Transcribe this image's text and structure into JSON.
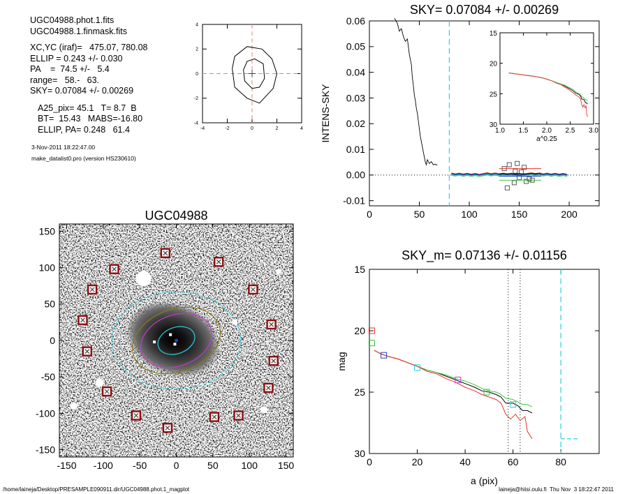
{
  "header": {
    "file_phot": "UGC04988.phot.1.fits",
    "file_mask": "UGC04988.1.finmask.fits",
    "params": [
      "XC,YC (iraf)=   475.07, 780.08",
      "ELLIP = 0.243 +/- 0.030",
      "PA    =  74.5 +/-   5.4",
      "range=   58.-   63.",
      "SKY= 0.07084 +/- 0.00269"
    ],
    "stats": [
      "A25_pix= 45.1   T= 8.7  B",
      "BT=  15.43   MABS=-16.80",
      "ELLIP, PA= 0.248   61.4"
    ],
    "date": "3-Nov-2011 18:22:47.00",
    "program": "make_datalist0.pro (version HS230610)"
  },
  "footer": {
    "path": "/home/laineja/Desktop/PRESAMPLE090911.dir/UGC04988.phot.1_magplot",
    "user": "laineja@hiisi.oulu.fi  Thu Nov  3 18:22:47 2011"
  },
  "colors": {
    "black": "#000000",
    "red": "#e8322c",
    "green": "#34c73a",
    "blue": "#2340c8",
    "cyan": "#29d0e0",
    "magenta": "#c838c8",
    "olive": "#8a7a18",
    "box": "#8b1010"
  },
  "chart_data": [
    {
      "id": "contour-inset",
      "type": "contour",
      "xlim": [
        -4,
        4
      ],
      "ylim": [
        -4,
        4
      ],
      "xticks": [
        "-4",
        "-2",
        "0",
        "2",
        "4"
      ],
      "yticks": [
        "4",
        "2",
        "0",
        "-2",
        "-4"
      ],
      "grid": false,
      "center_crosshair": [
        0,
        0
      ]
    },
    {
      "id": "sky-plot",
      "type": "line",
      "title": "SKY= 0.07084 +/- 0.00269",
      "xlabel": "",
      "ylabel": "INTENS-SKY",
      "xlim": [
        0,
        230
      ],
      "ylim": [
        -0.012,
        0.06
      ],
      "xticks": [
        "0",
        "50",
        "100",
        "150",
        "200"
      ],
      "yticks": [
        "0.06",
        "0.05",
        "0.04",
        "0.03",
        "0.02",
        "0.01",
        "0.00",
        "-0.01"
      ],
      "sky_window_x": 80,
      "profile": [
        [
          25,
          0.061
        ],
        [
          26,
          0.0605
        ],
        [
          28,
          0.059
        ],
        [
          30,
          0.056
        ],
        [
          32,
          0.057
        ],
        [
          34,
          0.054
        ],
        [
          36,
          0.052
        ],
        [
          38,
          0.053
        ],
        [
          40,
          0.047
        ],
        [
          42,
          0.043
        ],
        [
          43,
          0.038
        ],
        [
          44,
          0.035
        ],
        [
          45,
          0.031
        ],
        [
          46,
          0.029
        ],
        [
          47,
          0.026
        ],
        [
          48,
          0.024
        ],
        [
          49,
          0.021
        ],
        [
          50,
          0.018
        ],
        [
          51,
          0.015
        ],
        [
          52,
          0.013
        ],
        [
          53,
          0.011
        ],
        [
          54,
          0.009
        ],
        [
          55,
          0.007
        ],
        [
          56,
          0.005
        ],
        [
          57,
          0.004
        ],
        [
          58,
          0.006
        ],
        [
          60,
          0.0045
        ],
        [
          62,
          0.0052
        ],
        [
          64,
          0.004
        ],
        [
          66,
          0.0042
        ],
        [
          68,
          0.0038
        ]
      ],
      "sky_lines": [
        {
          "color": "black",
          "y": 0.0002,
          "x": [
            82,
            200
          ]
        },
        {
          "color": "green",
          "y": -0.0003,
          "x": [
            82,
            200
          ]
        },
        {
          "color": "red",
          "y": 0.0006,
          "x": [
            82,
            200
          ]
        },
        {
          "color": "cyan",
          "y": 0.0,
          "x": [
            82,
            200
          ]
        },
        {
          "color": "blue",
          "y": 0.0004,
          "x": [
            82,
            200
          ]
        }
      ],
      "sky_boxes": [
        [
          135,
          0.0025
        ],
        [
          140,
          0.004
        ],
        [
          145,
          -0.003
        ],
        [
          148,
          0.0045
        ],
        [
          150,
          -0.001
        ],
        [
          152,
          0.0012
        ],
        [
          155,
          0.003
        ],
        [
          157,
          -0.0025
        ],
        [
          160,
          -0.0015
        ],
        [
          163,
          -0.002
        ],
        [
          138,
          -0.005
        ],
        [
          146,
          0.0015
        ]
      ],
      "inset": {
        "xlabel": "a^0.25",
        "xlim": [
          1.0,
          3.0
        ],
        "ylim": [
          15,
          30
        ],
        "xticks": [
          "1.0",
          "1.5",
          "2.0",
          "2.5",
          "3.0"
        ],
        "yticks": [
          "15",
          "20",
          "25",
          "30"
        ]
      }
    },
    {
      "id": "image-panel",
      "type": "image",
      "title": "UGC04988",
      "xlim": [
        -160,
        160
      ],
      "ylim": [
        -160,
        160
      ],
      "xticks": [
        "-150",
        "-100",
        "-50",
        "0",
        "50",
        "100",
        "150"
      ],
      "yticks": [
        "150",
        "100",
        "50",
        "0",
        "-50",
        "-100",
        "-150"
      ],
      "marked_sources": [
        [
          -15,
          120
        ],
        [
          58,
          108
        ],
        [
          -85,
          98
        ],
        [
          -115,
          70
        ],
        [
          105,
          70
        ],
        [
          -128,
          28
        ],
        [
          130,
          22
        ],
        [
          -122,
          -15
        ],
        [
          133,
          -28
        ],
        [
          -95,
          -70
        ],
        [
          126,
          -65
        ],
        [
          -55,
          -103
        ],
        [
          52,
          -105
        ],
        [
          85,
          -103
        ],
        [
          -12,
          -120
        ]
      ],
      "ellipses": [
        {
          "color": "cyan",
          "a": 88,
          "b": 67,
          "pa": 0,
          "dashed": true
        },
        {
          "color": "olive",
          "a": 62,
          "b": 43,
          "pa": -20
        },
        {
          "color": "magenta",
          "a": 50,
          "b": 35,
          "pa": -20
        },
        {
          "color": "cyan",
          "a": 26,
          "b": 18,
          "pa": -20
        }
      ]
    },
    {
      "id": "mag-plot",
      "type": "line",
      "title": "SKY_m=  0.07136 +/- 0.01156",
      "xlabel": "a (pix)",
      "ylabel": "mag",
      "xlim": [
        0,
        96
      ],
      "ylim": [
        30,
        15
      ],
      "xticks": [
        "0",
        "20",
        "40",
        "60",
        "80"
      ],
      "yticks": [
        "15",
        "20",
        "25",
        "30"
      ],
      "range_lines_x": [
        58,
        63
      ],
      "sky_window_x": 80,
      "sky_mag_segment": {
        "x": [
          80,
          87
        ],
        "y": 28.8
      },
      "series": [
        {
          "color": "black",
          "points": [
            [
              2,
              21.6
            ],
            [
              5,
              21.9
            ],
            [
              8,
              22.1
            ],
            [
              12,
              22.3
            ],
            [
              16,
              22.6
            ],
            [
              20,
              22.9
            ],
            [
              24,
              23.2
            ],
            [
              28,
              23.4
            ],
            [
              32,
              23.7
            ],
            [
              36,
              24.0
            ],
            [
              40,
              24.3
            ],
            [
              44,
              24.6
            ],
            [
              47,
              24.9
            ],
            [
              50,
              25.0
            ],
            [
              53,
              25.2
            ],
            [
              55,
              25.4
            ],
            [
              57,
              25.9
            ],
            [
              60,
              25.9
            ],
            [
              62,
              26.1
            ],
            [
              64,
              26.5
            ],
            [
              66,
              26.5
            ],
            [
              68,
              26.7
            ]
          ]
        },
        {
          "color": "green",
          "points": [
            [
              2,
              21.6
            ],
            [
              5,
              21.9
            ],
            [
              8,
              22.1
            ],
            [
              12,
              22.3
            ],
            [
              16,
              22.6
            ],
            [
              20,
              22.9
            ],
            [
              24,
              23.2
            ],
            [
              28,
              23.4
            ],
            [
              32,
              23.6
            ],
            [
              36,
              23.9
            ],
            [
              40,
              24.1
            ],
            [
              44,
              24.4
            ],
            [
              47,
              24.7
            ],
            [
              50,
              24.9
            ],
            [
              53,
              25.0
            ],
            [
              55,
              25.2
            ],
            [
              57,
              25.5
            ],
            [
              60,
              25.6
            ],
            [
              62,
              25.8
            ],
            [
              64,
              26.0
            ],
            [
              66,
              26.0
            ],
            [
              68,
              26.2
            ]
          ]
        },
        {
          "color": "red",
          "points": [
            [
              2,
              21.6
            ],
            [
              5,
              21.9
            ],
            [
              8,
              22.1
            ],
            [
              12,
              22.3
            ],
            [
              16,
              22.6
            ],
            [
              20,
              22.9
            ],
            [
              24,
              23.3
            ],
            [
              28,
              23.5
            ],
            [
              32,
              23.9
            ],
            [
              36,
              24.2
            ],
            [
              40,
              24.6
            ],
            [
              44,
              24.9
            ],
            [
              47,
              25.2
            ],
            [
              50,
              25.4
            ],
            [
              53,
              25.6
            ],
            [
              55,
              25.9
            ],
            [
              57,
              26.8
            ],
            [
              59,
              27.2
            ],
            [
              61,
              26.8
            ],
            [
              63,
              27.3
            ],
            [
              65,
              27.0
            ],
            [
              66,
              28.2
            ],
            [
              68,
              28.8
            ]
          ]
        }
      ],
      "markers": [
        {
          "color": "red",
          "x": 1,
          "y": 20.0
        },
        {
          "color": "green",
          "x": 1,
          "y": 21.0
        },
        {
          "color": "blue",
          "x": 6,
          "y": 22.0
        },
        {
          "color": "cyan",
          "x": 20,
          "y": 23.0
        },
        {
          "color": "magenta",
          "x": 37,
          "y": 24.0
        },
        {
          "color": "green",
          "x": 49,
          "y": 25.0
        },
        {
          "color": "cyan",
          "x": 60,
          "y": 26.0
        }
      ]
    }
  ]
}
